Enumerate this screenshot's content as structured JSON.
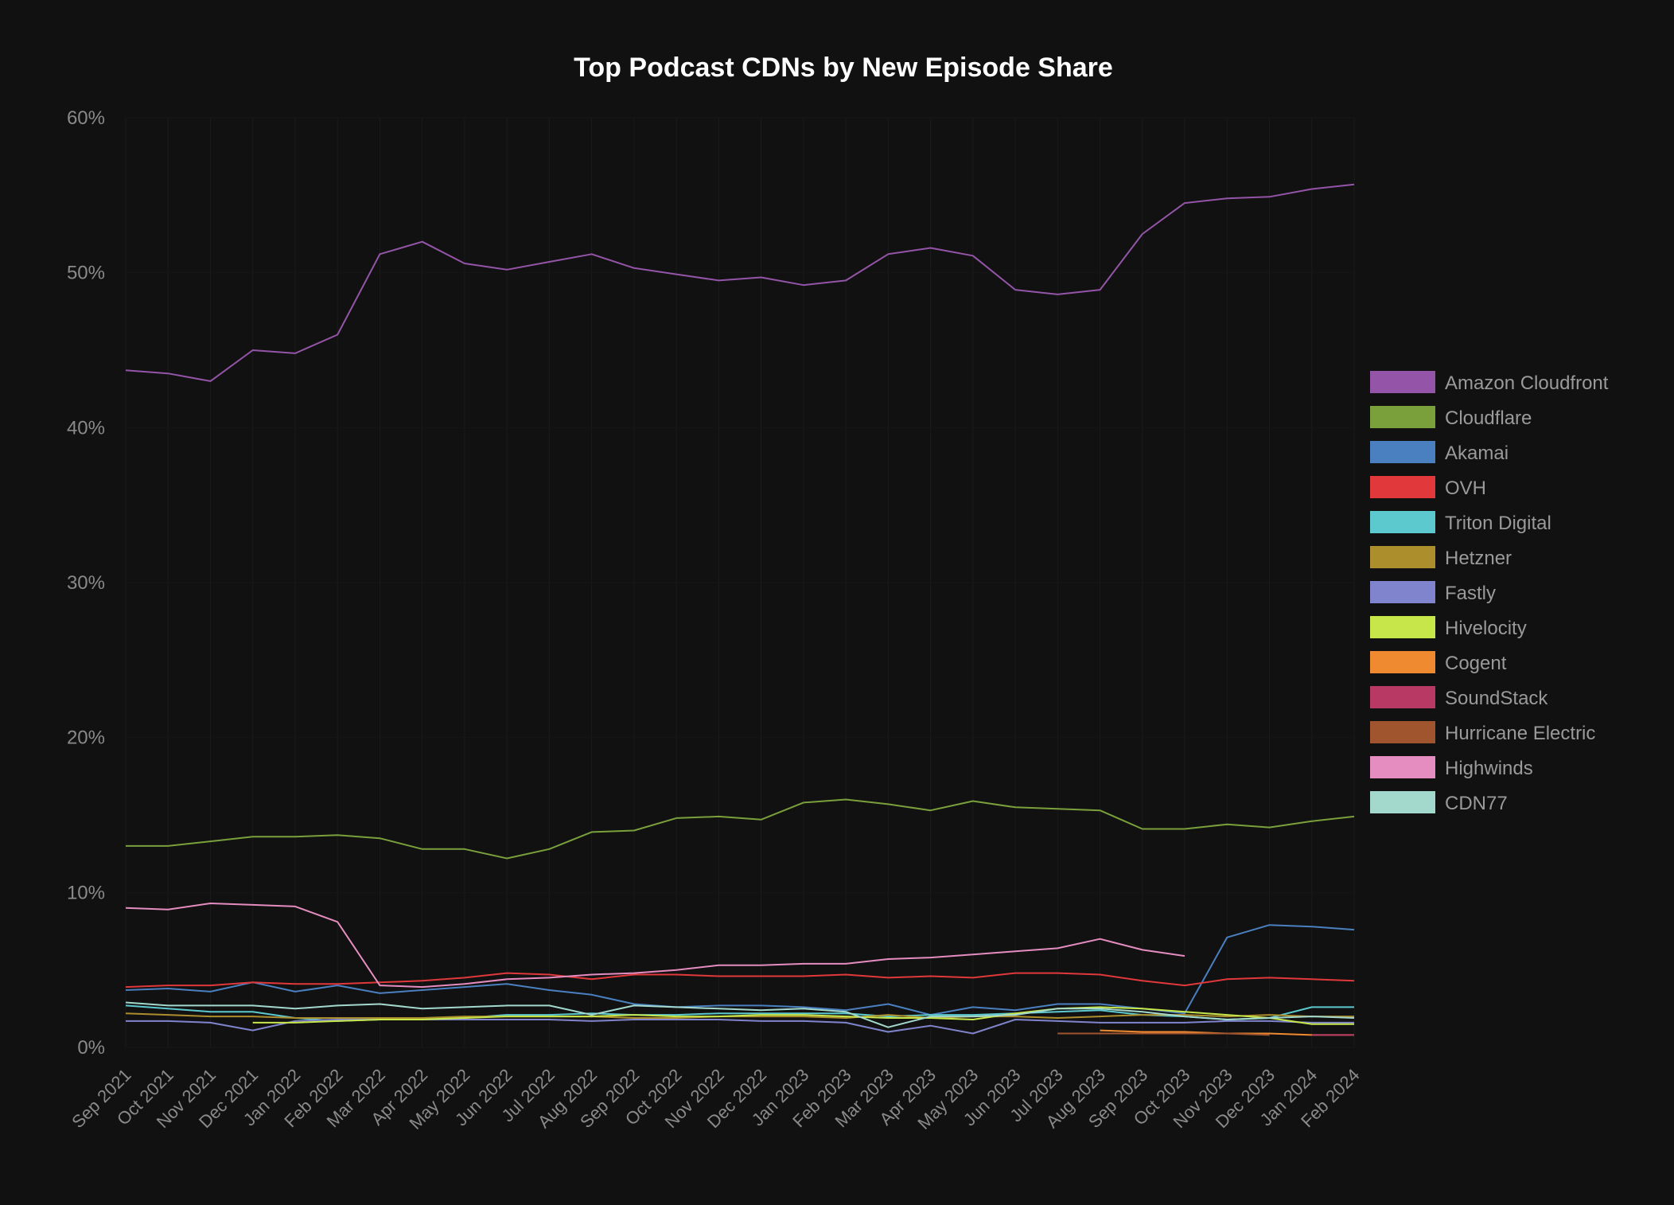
{
  "chart_data": {
    "type": "line",
    "title": "Top Podcast CDNs by New Episode Share",
    "xlabel": "",
    "ylabel": "",
    "ylim": [
      0,
      60
    ],
    "yticks": [
      "0%",
      "10%",
      "20%",
      "30%",
      "40%",
      "50%",
      "60%"
    ],
    "ytick_values": [
      0,
      10,
      20,
      30,
      40,
      50,
      60
    ],
    "grid": true,
    "legend_position": "right",
    "categories": [
      "Sep 2021",
      "Oct 2021",
      "Nov 2021",
      "Dec 2021",
      "Jan 2022",
      "Feb 2022",
      "Mar 2022",
      "Apr 2022",
      "May 2022",
      "Jun 2022",
      "Jul 2022",
      "Aug 2022",
      "Sep 2022",
      "Oct 2022",
      "Nov 2022",
      "Dec 2022",
      "Jan 2023",
      "Feb 2023",
      "Mar 2023",
      "Apr 2023",
      "May 2023",
      "Jun 2023",
      "Jul 2023",
      "Aug 2023",
      "Sep 2023",
      "Oct 2023",
      "Nov 2023",
      "Dec 2023",
      "Jan 2024",
      "Feb 2024"
    ],
    "series": [
      {
        "name": "Amazon Cloudfront",
        "color": "#9455a8",
        "values": [
          43.7,
          43.5,
          43.0,
          45.0,
          44.8,
          46.0,
          51.2,
          52.0,
          50.6,
          50.2,
          50.7,
          51.2,
          50.3,
          49.9,
          49.5,
          49.7,
          49.2,
          49.5,
          51.2,
          51.6,
          51.1,
          48.9,
          48.6,
          48.9,
          52.5,
          54.5,
          54.8,
          54.9,
          55.4,
          55.7
        ]
      },
      {
        "name": "Cloudflare",
        "color": "#7aa03c",
        "values": [
          13.0,
          13.0,
          13.3,
          13.6,
          13.6,
          13.7,
          13.5,
          12.8,
          12.8,
          12.2,
          12.8,
          13.9,
          14.0,
          14.8,
          14.9,
          14.7,
          15.8,
          16.0,
          15.7,
          15.3,
          15.9,
          15.5,
          15.4,
          15.3,
          14.1,
          14.1,
          14.4,
          14.2,
          14.6,
          14.9
        ]
      },
      {
        "name": "Akamai",
        "color": "#4a80c0",
        "values": [
          3.7,
          3.8,
          3.6,
          4.2,
          3.6,
          4.0,
          3.5,
          3.7,
          3.9,
          4.1,
          3.7,
          3.4,
          2.8,
          2.6,
          2.7,
          2.7,
          2.6,
          2.4,
          2.8,
          2.1,
          2.6,
          2.4,
          2.8,
          2.8,
          2.5,
          2.2,
          7.1,
          7.9,
          7.8,
          7.6
        ]
      },
      {
        "name": "OVH",
        "color": "#e0383b",
        "values": [
          3.9,
          4.0,
          4.0,
          4.2,
          4.1,
          4.1,
          4.2,
          4.3,
          4.5,
          4.8,
          4.7,
          4.4,
          4.7,
          4.7,
          4.6,
          4.6,
          4.6,
          4.7,
          4.5,
          4.6,
          4.5,
          4.8,
          4.8,
          4.7,
          4.3,
          4.0,
          4.4,
          4.5,
          4.4,
          4.3
        ]
      },
      {
        "name": "Triton Digital",
        "color": "#5cc9cf",
        "values": [
          2.7,
          2.5,
          2.3,
          2.3,
          1.9,
          1.7,
          1.8,
          1.9,
          1.9,
          2.1,
          2.1,
          2.2,
          2.1,
          2.1,
          2.2,
          2.2,
          2.2,
          2.2,
          2.0,
          2.1,
          2.1,
          2.2,
          2.3,
          2.4,
          2.1,
          2.0,
          1.8,
          1.9,
          2.6,
          2.6
        ]
      },
      {
        "name": "Hetzner",
        "color": "#ac8e2d",
        "values": [
          2.2,
          2.1,
          2.0,
          2.0,
          1.9,
          1.9,
          1.9,
          1.9,
          2.0,
          2.0,
          2.0,
          2.0,
          1.9,
          1.9,
          2.0,
          2.0,
          2.0,
          1.9,
          2.1,
          1.9,
          2.0,
          2.0,
          1.9,
          2.0,
          2.1,
          2.1,
          2.0,
          2.1,
          2.0,
          2.0
        ]
      },
      {
        "name": "Fastly",
        "color": "#7f84cc",
        "values": [
          1.7,
          1.7,
          1.6,
          1.1,
          1.7,
          1.8,
          1.8,
          1.8,
          1.8,
          1.8,
          1.8,
          1.7,
          1.8,
          1.8,
          1.8,
          1.7,
          1.7,
          1.6,
          1.0,
          1.4,
          0.9,
          1.8,
          1.7,
          1.6,
          1.6,
          1.6,
          1.7,
          1.7,
          1.6,
          1.6
        ]
      },
      {
        "name": "Hivelocity",
        "color": "#c6e64a",
        "values": [
          null,
          null,
          null,
          1.6,
          1.6,
          1.7,
          1.8,
          1.8,
          1.9,
          2.0,
          2.0,
          2.0,
          2.1,
          2.0,
          2.0,
          2.1,
          2.1,
          2.0,
          1.9,
          1.9,
          1.8,
          2.2,
          2.5,
          2.6,
          2.5,
          2.3,
          2.1,
          1.9,
          1.5,
          1.5
        ]
      },
      {
        "name": "Cogent",
        "color": "#f08a30",
        "values": [
          null,
          null,
          null,
          null,
          null,
          null,
          null,
          null,
          null,
          null,
          null,
          null,
          null,
          null,
          null,
          null,
          null,
          null,
          null,
          null,
          null,
          null,
          null,
          1.1,
          1.0,
          1.0,
          0.9,
          0.9,
          0.8,
          0.8
        ]
      },
      {
        "name": "SoundStack",
        "color": "#b83a64",
        "values": [
          null,
          null,
          null,
          null,
          null,
          null,
          null,
          null,
          null,
          null,
          null,
          null,
          null,
          null,
          null,
          null,
          null,
          null,
          null,
          null,
          null,
          null,
          null,
          null,
          null,
          null,
          null,
          null,
          0.8,
          0.8
        ]
      },
      {
        "name": "Hurricane Electric",
        "color": "#a0552e",
        "values": [
          null,
          null,
          null,
          null,
          null,
          null,
          null,
          null,
          null,
          null,
          null,
          null,
          null,
          null,
          null,
          null,
          null,
          null,
          null,
          null,
          null,
          null,
          0.9,
          0.9,
          0.9,
          0.9,
          0.9,
          0.8,
          null,
          null
        ]
      },
      {
        "name": "Highwinds",
        "color": "#e58cc1",
        "values": [
          9.0,
          8.9,
          9.3,
          9.2,
          9.1,
          8.1,
          4.0,
          3.9,
          4.1,
          4.4,
          4.5,
          4.7,
          4.8,
          5.0,
          5.3,
          5.3,
          5.4,
          5.4,
          5.7,
          5.8,
          6.0,
          6.2,
          6.4,
          7.0,
          6.3,
          5.9,
          null,
          null,
          null,
          null
        ]
      },
      {
        "name": "CDN77",
        "color": "#a3d8cd",
        "values": [
          2.9,
          2.7,
          2.7,
          2.7,
          2.5,
          2.7,
          2.8,
          2.5,
          2.6,
          2.7,
          2.7,
          2.1,
          2.7,
          2.6,
          2.5,
          2.4,
          2.5,
          2.3,
          1.3,
          2.0,
          2.0,
          2.1,
          2.5,
          2.5,
          2.3,
          2.0,
          1.8,
          1.9,
          2.0,
          1.9
        ]
      }
    ]
  }
}
